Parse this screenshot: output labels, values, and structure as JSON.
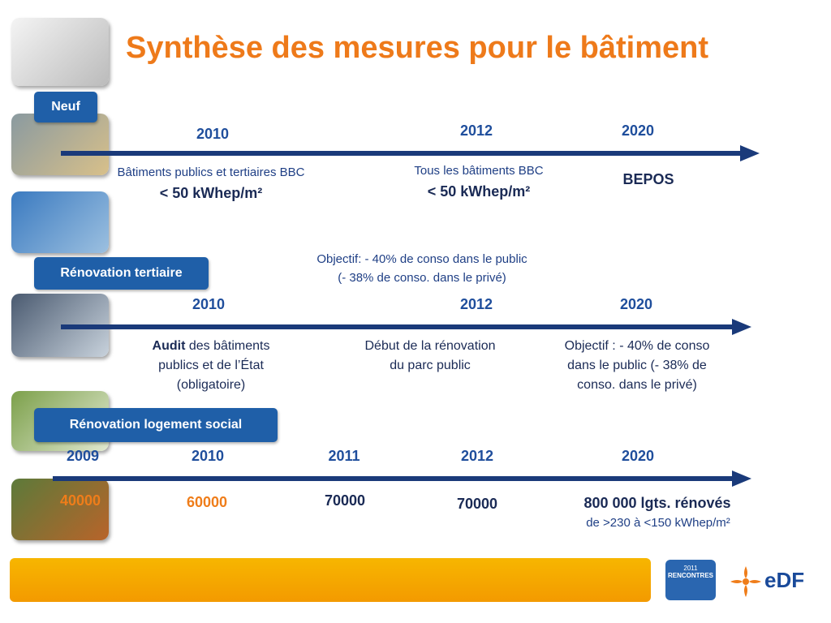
{
  "title": "Synthèse des mesures pour le bâtiment",
  "sections": [
    {
      "label": "Neuf",
      "milestones": [
        {
          "year": "2010",
          "text": "Bâtiments publics et tertiaires BBC",
          "highlight": "< 50 kWhep/m²"
        },
        {
          "year": "2012",
          "text": "Tous les bâtiments BBC",
          "highlight": "< 50 kWhep/m²"
        },
        {
          "year": "2020",
          "highlight": "BEPOS"
        }
      ]
    },
    {
      "label": "Rénovation tertiaire",
      "note": [
        "Objectif: - 40% de conso dans le public",
        "(- 38% de conso. dans le privé)"
      ],
      "milestones": [
        {
          "year": "2010",
          "lead": "Audit",
          "lines": [
            "des bâtiments",
            "publics et de l’État",
            "(obligatoire)"
          ]
        },
        {
          "year": "2012",
          "lines": [
            "Début de la rénovation",
            "du parc public"
          ]
        },
        {
          "year": "2020",
          "lines": [
            "Objectif : - 40% de conso",
            "dans le public (- 38% de",
            "conso. dans le privé)"
          ]
        }
      ]
    },
    {
      "label": "Rénovation logement social",
      "milestones": [
        {
          "year": "2009",
          "value": "40000"
        },
        {
          "year": "2010",
          "value": "60000"
        },
        {
          "year": "2011",
          "value": "70000"
        },
        {
          "year": "2012",
          "value": "70000"
        },
        {
          "year": "2020",
          "value": "800 000 lgts. rénovés",
          "detail": "de >230 à <150 kWhep/m²"
        }
      ]
    }
  ],
  "logos": {
    "event_year": "2011",
    "event": "RENCONTRES",
    "company": "eDF"
  }
}
